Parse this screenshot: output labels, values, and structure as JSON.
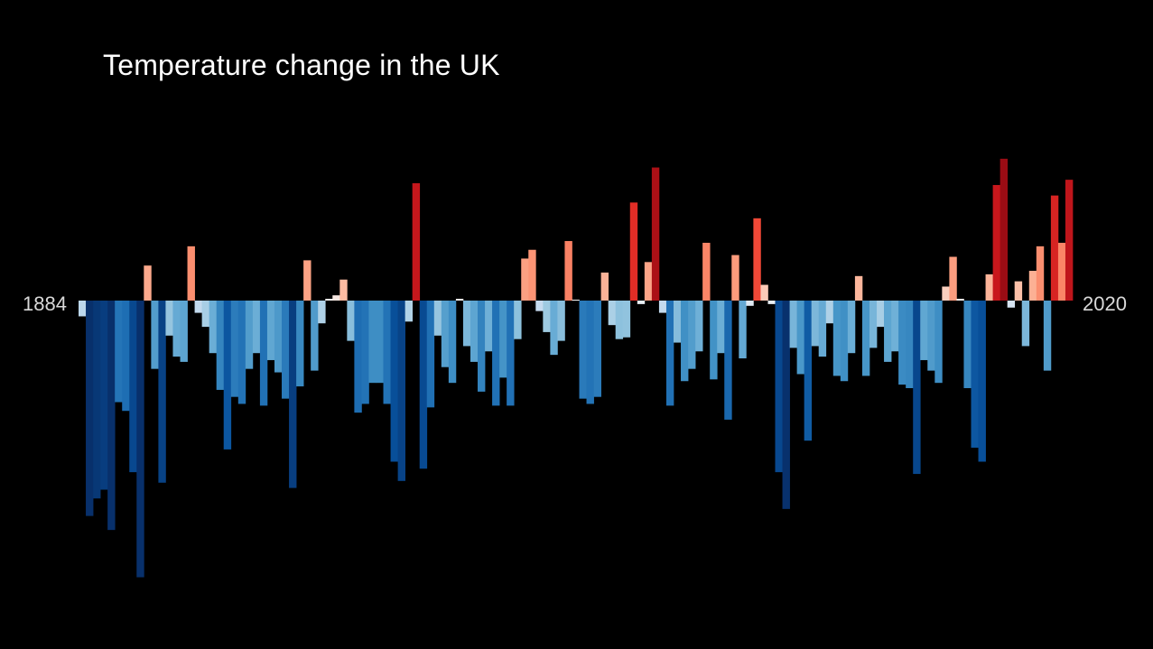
{
  "chart_data": {
    "type": "bar",
    "title": "Temperature change in the UK",
    "start_year": "1884",
    "end_year": "2020",
    "xlabel": "",
    "ylabel": "",
    "ylim": [
      -1.6,
      1.3
    ],
    "grid": false,
    "legend": "none",
    "colors": {
      "background": "#000000",
      "cold_extreme": "#08306b",
      "neutral": "#f7f7f7",
      "warm_extreme": "#67000d"
    },
    "categories": [
      1884,
      1885,
      1886,
      1887,
      1888,
      1889,
      1890,
      1891,
      1892,
      1893,
      1894,
      1895,
      1896,
      1897,
      1898,
      1899,
      1900,
      1901,
      1902,
      1903,
      1904,
      1905,
      1906,
      1907,
      1908,
      1909,
      1910,
      1911,
      1912,
      1913,
      1914,
      1915,
      1916,
      1917,
      1918,
      1919,
      1920,
      1921,
      1922,
      1923,
      1924,
      1925,
      1926,
      1927,
      1928,
      1929,
      1930,
      1931,
      1932,
      1933,
      1934,
      1935,
      1936,
      1937,
      1938,
      1939,
      1940,
      1941,
      1942,
      1943,
      1944,
      1945,
      1946,
      1947,
      1948,
      1949,
      1950,
      1951,
      1952,
      1953,
      1954,
      1955,
      1956,
      1957,
      1958,
      1959,
      1960,
      1961,
      1962,
      1963,
      1964,
      1965,
      1966,
      1967,
      1968,
      1969,
      1970,
      1971,
      1972,
      1973,
      1974,
      1975,
      1976,
      1977,
      1978,
      1979,
      1980,
      1981,
      1982,
      1983,
      1984,
      1985,
      1986,
      1987,
      1988,
      1989,
      1990,
      1991,
      1992,
      1993,
      1994,
      1995,
      1996,
      1997,
      1998,
      1999,
      2000,
      2001,
      2002,
      2003,
      2004,
      2005,
      2006,
      2007,
      2008,
      2009,
      2010,
      2011,
      2012,
      2013,
      2014,
      2015,
      2016,
      2017,
      2018,
      2019,
      2020
    ],
    "values": [
      -0.09,
      -1.23,
      -1.13,
      -1.08,
      -1.31,
      -0.58,
      -0.63,
      -0.98,
      -1.58,
      0.2,
      -0.39,
      -1.04,
      -0.2,
      -0.32,
      -0.35,
      0.31,
      -0.07,
      -0.15,
      -0.3,
      -0.51,
      -0.85,
      -0.55,
      -0.59,
      -0.39,
      -0.3,
      -0.6,
      -0.34,
      -0.41,
      -0.56,
      -1.07,
      -0.49,
      0.23,
      -0.4,
      -0.13,
      0.01,
      0.03,
      0.12,
      -0.23,
      -0.64,
      -0.59,
      -0.47,
      -0.47,
      -0.59,
      -0.92,
      -1.03,
      -0.12,
      0.67,
      -0.96,
      -0.61,
      -0.2,
      -0.38,
      -0.47,
      0.01,
      -0.26,
      -0.35,
      -0.52,
      -0.29,
      -0.6,
      -0.44,
      -0.6,
      -0.22,
      0.24,
      0.29,
      -0.06,
      -0.18,
      -0.31,
      -0.23,
      0.34,
      0.0,
      -0.56,
      -0.59,
      -0.55,
      0.16,
      -0.14,
      -0.22,
      -0.21,
      0.56,
      -0.02,
      0.22,
      0.76,
      -0.07,
      -0.6,
      -0.24,
      -0.46,
      -0.39,
      -0.29,
      0.33,
      -0.45,
      -0.3,
      -0.68,
      0.26,
      -0.33,
      -0.03,
      0.47,
      0.09,
      -0.02,
      -0.98,
      -1.19,
      -0.27,
      -0.42,
      -0.8,
      -0.26,
      -0.32,
      -0.13,
      -0.43,
      -0.46,
      -0.3,
      0.14,
      -0.43,
      -0.27,
      -0.15,
      -0.35,
      -0.29,
      -0.48,
      -0.5,
      -0.99,
      -0.34,
      -0.4,
      -0.47,
      0.08,
      0.25,
      0.01,
      -0.5,
      -0.84,
      -0.92,
      0.15,
      0.66,
      0.81,
      -0.04,
      0.11,
      -0.26,
      0.17,
      0.31,
      -0.4,
      0.6,
      0.33,
      0.69
    ]
  }
}
